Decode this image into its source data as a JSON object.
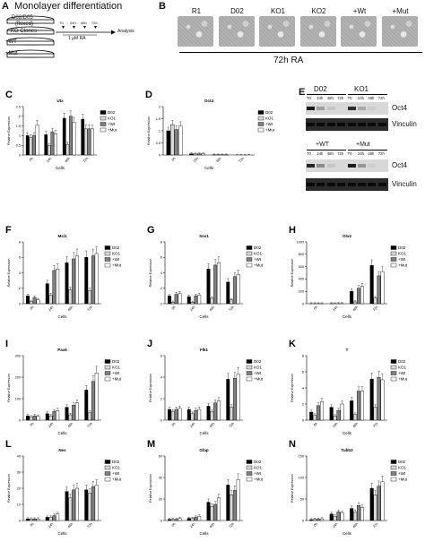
{
  "panel_a": {
    "letter": "A",
    "title": "Monolayer differentiation",
    "wells": [
      "D02/D05",
      "(floxed)",
      "KO Clones",
      "+WT",
      "+Mut"
    ],
    "timeline_ticks": [
      "T0",
      "24h",
      "48h",
      "72h"
    ],
    "ra_label": "1 μM RA",
    "analysis_label": "Analysis"
  },
  "panel_b": {
    "letter": "B",
    "labels": [
      "R1",
      "D02",
      "KO1",
      "KO2",
      "+Wt",
      "+Mut"
    ],
    "caption": "72h RA"
  },
  "panel_e": {
    "letter": "E",
    "top_groups": [
      "D02",
      "KO1"
    ],
    "bottom_groups": [
      "+WT",
      "+Mut"
    ],
    "lanes": [
      "T0",
      "24h",
      "48h",
      "72h",
      "T0",
      "24h",
      "48h",
      "72h"
    ],
    "band_labels": [
      "Oct4",
      "Vinculin"
    ],
    "top_oct4": [
      1,
      0.3,
      0.1,
      0,
      0.9,
      0.25,
      0.05,
      0
    ],
    "bottom_oct4": [
      0.95,
      0.4,
      0.1,
      0,
      1,
      0.35,
      0.05,
      0
    ]
  },
  "legend": {
    "keys": [
      "D02",
      "KO1",
      "+Wt",
      "+Mut"
    ],
    "colors": [
      "#000000",
      "#d9d9d9",
      "#808080",
      "#ffffff"
    ]
  },
  "axis": {
    "ylabel": "Relative Expression",
    "xlabel": "Cells",
    "categories": [
      "0h",
      "24h",
      "48h",
      "72h"
    ]
  },
  "chart_data": [
    {
      "id": "C",
      "title": "Utx",
      "type": "bar",
      "ylim": [
        0,
        2.5
      ],
      "yticks": [
        0,
        0.5,
        1,
        1.5,
        2,
        2.5
      ],
      "categories": [
        "0h",
        "24h",
        "48h",
        "72h"
      ],
      "series": [
        {
          "name": "D02",
          "values": [
            1.0,
            1.05,
            1.9,
            1.85
          ]
        },
        {
          "name": "KO1",
          "values": [
            0.9,
            0.5,
            0.55,
            1.35
          ]
        },
        {
          "name": "+Wt",
          "values": [
            1.0,
            1.2,
            2.0,
            1.35
          ]
        },
        {
          "name": "+Mut",
          "values": [
            1.55,
            1.1,
            1.7,
            1.35
          ]
        }
      ]
    },
    {
      "id": "D",
      "title": "Oct4",
      "type": "bar",
      "ylim": [
        0,
        2.0
      ],
      "yticks": [
        0,
        0.5,
        1.0,
        1.5,
        2.0
      ],
      "categories": [
        "0h",
        "24h",
        "48h",
        "72h"
      ],
      "series": [
        {
          "name": "D02",
          "values": [
            1.0,
            0.05,
            0.01,
            0.0
          ]
        },
        {
          "name": "KO1",
          "values": [
            1.25,
            0.04,
            0.01,
            0.0
          ]
        },
        {
          "name": "+Wt",
          "values": [
            1.05,
            0.05,
            0.01,
            0.0
          ]
        },
        {
          "name": "+Mut",
          "values": [
            1.2,
            0.05,
            0.01,
            0.0
          ]
        }
      ]
    },
    {
      "id": "F",
      "title": "Msi1",
      "type": "bar",
      "ylim": [
        0,
        8
      ],
      "yticks": [
        0,
        2,
        4,
        6,
        8
      ],
      "categories": [
        "0h",
        "24h",
        "48h",
        "72h"
      ],
      "series": [
        {
          "name": "D02",
          "values": [
            1.0,
            2.6,
            5.3,
            6.0
          ]
        },
        {
          "name": "KO1",
          "values": [
            0.3,
            1.1,
            1.8,
            1.7
          ]
        },
        {
          "name": "+Wt",
          "values": [
            0.8,
            4.3,
            5.8,
            6.2
          ]
        },
        {
          "name": "+Mut",
          "values": [
            0.5,
            4.5,
            6.2,
            6.5
          ]
        }
      ]
    },
    {
      "id": "G",
      "title": "Sox1",
      "type": "bar",
      "ylim": [
        0,
        8
      ],
      "yticks": [
        0,
        2,
        4,
        6,
        8
      ],
      "categories": [
        "0h",
        "24h",
        "48h",
        "72h"
      ],
      "series": [
        {
          "name": "D02",
          "values": [
            1.0,
            0.9,
            4.5,
            2.8
          ]
        },
        {
          "name": "KO1",
          "values": [
            0.2,
            0.2,
            0.7,
            0.5
          ]
        },
        {
          "name": "+Wt",
          "values": [
            1.2,
            1.0,
            5.0,
            3.5
          ]
        },
        {
          "name": "+Mut",
          "values": [
            1.3,
            1.1,
            5.3,
            3.8
          ]
        }
      ]
    },
    {
      "id": "H",
      "title": "Otx2",
      "type": "bar",
      "ylim": [
        0,
        1000
      ],
      "yticks": [
        0,
        200,
        400,
        600,
        800,
        1000
      ],
      "categories": [
        "0h",
        "24h",
        "48h",
        "72h"
      ],
      "series": [
        {
          "name": "D02",
          "values": [
            1,
            2,
            200,
            620
          ]
        },
        {
          "name": "KO1",
          "values": [
            1,
            1,
            30,
            90
          ]
        },
        {
          "name": "+Wt",
          "values": [
            1,
            2,
            250,
            450
          ]
        },
        {
          "name": "+Mut",
          "values": [
            1,
            2,
            280,
            520
          ]
        }
      ]
    },
    {
      "id": "I",
      "title": "Pax6",
      "type": "bar",
      "ylim": [
        0,
        300
      ],
      "yticks": [
        0,
        100,
        200,
        300
      ],
      "categories": [
        "0h",
        "24h",
        "48h",
        "72h"
      ],
      "series": [
        {
          "name": "D02",
          "values": [
            20,
            30,
            60,
            140
          ]
        },
        {
          "name": "KO1",
          "values": [
            15,
            20,
            25,
            35
          ]
        },
        {
          "name": "+Wt",
          "values": [
            20,
            40,
            70,
            180
          ]
        },
        {
          "name": "+Mut",
          "values": [
            18,
            45,
            80,
            220
          ]
        }
      ]
    },
    {
      "id": "J",
      "title": "Flk1",
      "type": "bar",
      "ylim": [
        0,
        6
      ],
      "yticks": [
        0,
        2,
        4,
        6
      ],
      "categories": [
        "0h",
        "24h",
        "48h",
        "72h"
      ],
      "series": [
        {
          "name": "D02",
          "values": [
            1.0,
            1.0,
            1.3,
            3.8
          ]
        },
        {
          "name": "KO1",
          "values": [
            0.8,
            0.6,
            0.8,
            1.2
          ]
        },
        {
          "name": "+Wt",
          "values": [
            1.0,
            0.9,
            1.6,
            3.9
          ]
        },
        {
          "name": "+Mut",
          "values": [
            1.1,
            1.0,
            1.8,
            4.3
          ]
        }
      ]
    },
    {
      "id": "K",
      "title": "T",
      "type": "bar",
      "ylim": [
        0,
        8
      ],
      "yticks": [
        0,
        2,
        4,
        6,
        8
      ],
      "categories": [
        "0h",
        "24h",
        "48h",
        "72h"
      ],
      "series": [
        {
          "name": "D02",
          "values": [
            1.0,
            1.6,
            2.4,
            5.1
          ]
        },
        {
          "name": "KO1",
          "values": [
            0.6,
            0.5,
            0.7,
            1.6
          ]
        },
        {
          "name": "+Wt",
          "values": [
            1.8,
            1.2,
            3.6,
            5.3
          ]
        },
        {
          "name": "+Mut",
          "values": [
            2.3,
            2.0,
            3.6,
            5.0
          ]
        }
      ]
    },
    {
      "id": "L",
      "title": "Nes",
      "type": "bar",
      "ylim": [
        0,
        40
      ],
      "yticks": [
        0,
        10,
        20,
        30,
        40
      ],
      "categories": [
        "0h",
        "24h",
        "48h",
        "72h"
      ],
      "series": [
        {
          "name": "D02",
          "values": [
            1,
            2,
            18,
            19
          ]
        },
        {
          "name": "KO1",
          "values": [
            1,
            2,
            14,
            17
          ]
        },
        {
          "name": "+Wt",
          "values": [
            1,
            3,
            19,
            21
          ]
        },
        {
          "name": "+Mut",
          "values": [
            1,
            4,
            20,
            22
          ]
        }
      ]
    },
    {
      "id": "M",
      "title": "Gfap",
      "type": "bar",
      "ylim": [
        0,
        60
      ],
      "yticks": [
        0,
        20,
        40,
        60
      ],
      "categories": [
        "0h",
        "24h",
        "48h",
        "72h"
      ],
      "series": [
        {
          "name": "D02",
          "values": [
            1,
            2,
            17,
            33
          ]
        },
        {
          "name": "KO1",
          "values": [
            1,
            2,
            13,
            24
          ]
        },
        {
          "name": "+Wt",
          "values": [
            1,
            3,
            15,
            28
          ]
        },
        {
          "name": "+Mut",
          "values": [
            2,
            4,
            21,
            38
          ]
        }
      ]
    },
    {
      "id": "N",
      "title": "Tubb3",
      "type": "bar",
      "ylim": [
        0,
        150
      ],
      "yticks": [
        0,
        50,
        100,
        150
      ],
      "categories": [
        "0h",
        "24h",
        "48h",
        "72h"
      ],
      "series": [
        {
          "name": "D02",
          "values": [
            2,
            15,
            28,
            75
          ]
        },
        {
          "name": "KO1",
          "values": [
            3,
            10,
            20,
            60
          ]
        },
        {
          "name": "+Wt",
          "values": [
            3,
            20,
            35,
            80
          ]
        },
        {
          "name": "+Mut",
          "values": [
            4,
            18,
            30,
            90
          ]
        }
      ]
    }
  ]
}
